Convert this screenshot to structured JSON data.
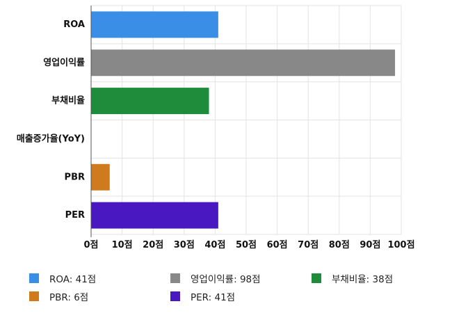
{
  "chart_data": {
    "type": "bar",
    "orientation": "horizontal",
    "categories": [
      "ROA",
      "영업이익률",
      "부채비율",
      "매출증가율(YoY)",
      "PBR",
      "PER"
    ],
    "values": [
      41,
      98,
      38,
      0,
      6,
      41
    ],
    "colors": [
      "#3a8ee6",
      "#888888",
      "#1e8c3a",
      "#d07a1e",
      "#d07a1e",
      "#4a18c0"
    ],
    "xlim": [
      0,
      100
    ],
    "x_ticks": [
      0,
      10,
      20,
      30,
      40,
      50,
      60,
      70,
      80,
      90,
      100
    ],
    "x_tick_labels": [
      "0점",
      "10점",
      "20점",
      "30점",
      "40점",
      "50점",
      "60점",
      "70점",
      "80점",
      "90점",
      "100점"
    ],
    "grid": true,
    "legend_position": "bottom",
    "title": "",
    "xlabel": "",
    "ylabel": ""
  },
  "legend": {
    "items": [
      {
        "label": "ROA: 41점",
        "color": "#3a8ee6"
      },
      {
        "label": "영업이익률: 98점",
        "color": "#888888"
      },
      {
        "label": "부채비율: 38점",
        "color": "#1e8c3a"
      },
      {
        "label": "PBR: 6점",
        "color": "#d07a1e"
      },
      {
        "label": "PER: 41점",
        "color": "#4a18c0"
      }
    ]
  }
}
